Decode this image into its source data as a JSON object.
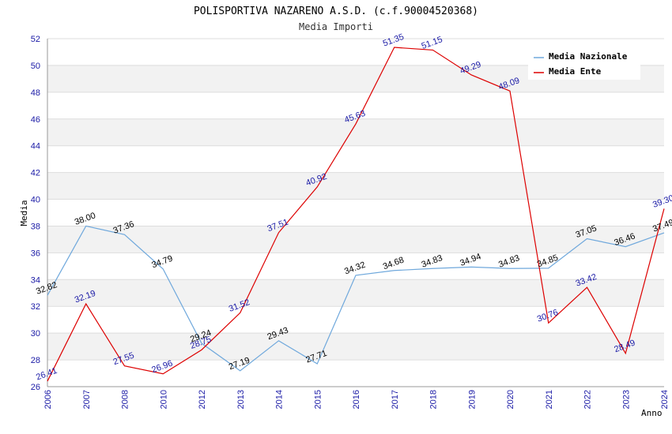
{
  "chart_data": {
    "type": "line",
    "title": "POLISPORTIVA NAZARENO A.S.D. (c.f.90004520368)",
    "subtitle": "Media Importi",
    "xlabel": "Anno",
    "ylabel": "Media",
    "ylim": [
      26,
      52
    ],
    "yticks": [
      26,
      28,
      30,
      32,
      34,
      36,
      38,
      40,
      42,
      44,
      46,
      48,
      50,
      52
    ],
    "categories": [
      "2006",
      "2007",
      "2008",
      "2010",
      "2012",
      "2013",
      "2014",
      "2015",
      "2016",
      "2017",
      "2018",
      "2019",
      "2020",
      "2021",
      "2022",
      "2023",
      "2024"
    ],
    "series": [
      {
        "name": "Media Nazionale",
        "color": "#6fa8dc",
        "values": [
          32.82,
          38.0,
          37.36,
          34.79,
          29.24,
          27.19,
          29.43,
          27.71,
          34.32,
          34.68,
          34.83,
          34.94,
          34.83,
          34.85,
          37.05,
          36.46,
          37.49
        ],
        "labels": [
          "32.82",
          "38.00",
          "37.36",
          "34.79",
          "29.24",
          "27.19",
          "29.43",
          "27.71",
          "34.32",
          "34.68",
          "34.83",
          "34.94",
          "34.83",
          "34.85",
          "37.05",
          "36.46",
          "37.49"
        ]
      },
      {
        "name": "Media Ente",
        "color": "#dd0000",
        "values": [
          26.41,
          32.19,
          27.55,
          26.96,
          28.75,
          31.52,
          37.51,
          40.92,
          45.63,
          51.35,
          51.15,
          49.29,
          48.09,
          30.76,
          33.42,
          28.49,
          39.3
        ],
        "labels": [
          "26.41",
          "32.19",
          "27.55",
          "26.96",
          "28.75",
          "31.52",
          "37.51",
          "40.92",
          "45.63",
          "51.35",
          "51.15",
          "49.29",
          "48.09",
          "30.76",
          "33.42",
          "28.49",
          "39.30"
        ]
      }
    ],
    "legend": {
      "position": "top-right"
    },
    "grid": true
  }
}
